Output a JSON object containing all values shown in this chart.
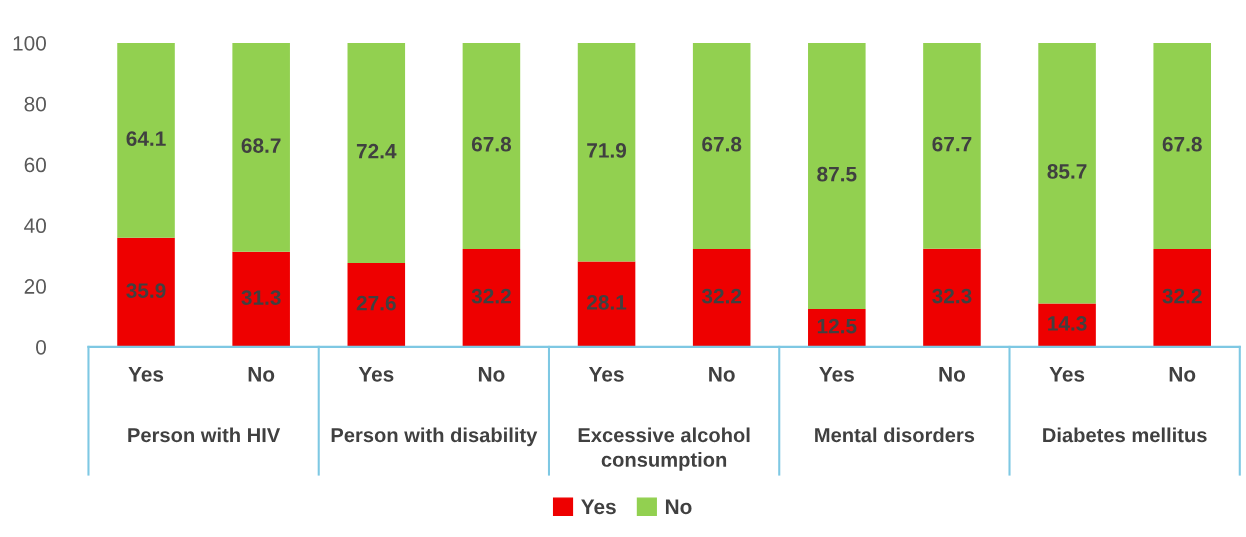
{
  "chart_data": {
    "type": "bar",
    "stacked": true,
    "categories": [
      "Yes",
      "No",
      "Yes",
      "No",
      "Yes",
      "No",
      "Yes",
      "No",
      "Yes",
      "No"
    ],
    "annotations": [
      "Person with HIV",
      "Person with disability",
      "Excessive alcohol consumption",
      "Mental disorders",
      "Diabetes mellitus"
    ],
    "series": [
      {
        "name": "Yes",
        "color": "#ee0000",
        "values": [
          35.9,
          31.3,
          27.6,
          32.2,
          28.1,
          32.2,
          12.5,
          32.3,
          14.3,
          32.2
        ]
      },
      {
        "name": "No",
        "color": "#92d050",
        "values": [
          64.1,
          68.7,
          72.4,
          67.8,
          71.9,
          67.8,
          87.5,
          67.7,
          85.7,
          67.8
        ]
      }
    ],
    "ylim": [
      0,
      100
    ],
    "yticks": [
      0,
      20,
      40,
      60,
      80,
      100
    ],
    "data_labels": true,
    "grid": false,
    "legend": "bottom"
  }
}
